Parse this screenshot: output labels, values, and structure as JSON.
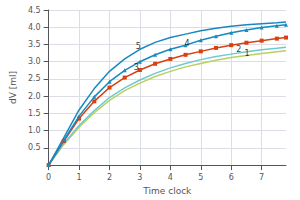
{
  "chart_data": {
    "type": "line",
    "xlabel": "Time clock",
    "ylabel": "dV [ml]",
    "xlim": [
      0,
      7.8
    ],
    "ylim": [
      0,
      4.5
    ],
    "xticks": [
      0,
      1,
      2,
      3,
      4,
      5,
      6,
      7
    ],
    "yticks": [
      0.5,
      {
        "value": 1.0,
        "label": "1.0"
      },
      1.5,
      {
        "value": 2.0,
        "label": "2.0"
      },
      2.5,
      {
        "value": 3.0,
        "label": "3.0"
      },
      3.5,
      {
        "value": 4.0,
        "label": "4.0"
      },
      4.5
    ],
    "grid": true,
    "x": [
      0,
      0.5,
      1.0,
      1.5,
      2.0,
      2.5,
      3.0,
      3.5,
      4.0,
      4.5,
      5.0,
      5.5,
      6.0,
      6.5,
      7.0,
      7.5,
      7.8
    ],
    "series": [
      {
        "color": "#b8d060",
        "values": [
          0,
          0.6,
          1.1,
          1.52,
          1.88,
          2.16,
          2.38,
          2.57,
          2.72,
          2.85,
          2.95,
          3.04,
          3.12,
          3.18,
          3.24,
          3.29,
          3.32
        ]
      },
      {
        "color": "#70c8d0",
        "values": [
          0,
          0.63,
          1.15,
          1.58,
          1.96,
          2.24,
          2.47,
          2.66,
          2.82,
          2.95,
          3.06,
          3.15,
          3.22,
          3.29,
          3.35,
          3.39,
          3.42
        ]
      },
      {
        "color": "#d84010",
        "marker": "square",
        "values": [
          0,
          0.7,
          1.35,
          1.85,
          2.25,
          2.54,
          2.76,
          2.94,
          3.08,
          3.2,
          3.3,
          3.4,
          3.48,
          3.55,
          3.61,
          3.67,
          3.7
        ]
      },
      {
        "color": "#1888c0",
        "marker": "triangle",
        "values": [
          0,
          0.72,
          1.42,
          1.98,
          2.42,
          2.75,
          3.0,
          3.2,
          3.36,
          3.48,
          3.62,
          3.74,
          3.84,
          3.92,
          3.99,
          4.04,
          4.07
        ]
      },
      {
        "color": "#1888c0",
        "values": [
          0,
          0.8,
          1.6,
          2.22,
          2.72,
          3.08,
          3.36,
          3.56,
          3.7,
          3.8,
          3.9,
          3.97,
          4.03,
          4.07,
          4.1,
          4.13,
          4.15
        ]
      }
    ],
    "annotations": [
      {
        "text": "5",
        "x": 2.95,
        "y": 3.44
      },
      {
        "text": "3",
        "x": 2.88,
        "y": 2.82
      },
      {
        "text": "4",
        "x": 4.55,
        "y": 3.54
      },
      {
        "text": "2",
        "x": 6.25,
        "y": 3.34
      },
      {
        "text": "1",
        "x": 6.52,
        "y": 3.24
      }
    ]
  }
}
